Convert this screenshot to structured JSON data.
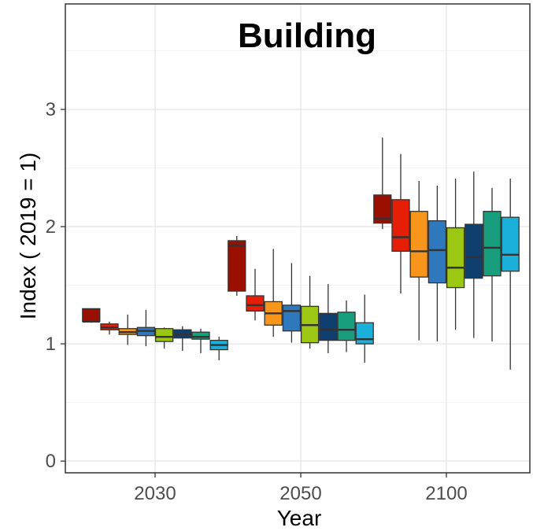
{
  "chart_data": {
    "type": "box",
    "title": "Building",
    "xlabel": "Year",
    "ylabel": "Index ( 2019 = 1)",
    "ylim": [
      -0.1,
      3.9
    ],
    "categories": [
      "2030",
      "2050",
      "2100"
    ],
    "yticks": [
      "0",
      "1",
      "2",
      "3"
    ],
    "grid": true,
    "legend": "none",
    "series": [
      {
        "color": "#9b0f00",
        "boxes": [
          {
            "min": 1.18,
            "q1": 1.19,
            "median": 1.19,
            "q3": 1.3,
            "max": 1.3
          },
          {
            "min": 1.41,
            "q1": 1.45,
            "median": 1.84,
            "q3": 1.88,
            "max": 1.92
          },
          {
            "min": 1.98,
            "q1": 2.03,
            "median": 2.07,
            "q3": 2.27,
            "max": 2.76
          }
        ]
      },
      {
        "color": "#e51e05",
        "boxes": [
          {
            "min": 1.08,
            "q1": 1.12,
            "median": 1.14,
            "q3": 1.17,
            "max": 1.19
          },
          {
            "min": 1.2,
            "q1": 1.28,
            "median": 1.33,
            "q3": 1.41,
            "max": 1.64
          },
          {
            "min": 1.43,
            "q1": 1.79,
            "median": 1.91,
            "q3": 2.23,
            "max": 2.62
          }
        ]
      },
      {
        "color": "#f8961c",
        "boxes": [
          {
            "min": 0.99,
            "q1": 1.08,
            "median": 1.1,
            "q3": 1.13,
            "max": 1.25
          },
          {
            "min": 1.06,
            "q1": 1.16,
            "median": 1.26,
            "q3": 1.36,
            "max": 1.81
          },
          {
            "min": 1.03,
            "q1": 1.57,
            "median": 1.79,
            "q3": 2.13,
            "max": 2.39
          }
        ]
      },
      {
        "color": "#2e78bd",
        "boxes": [
          {
            "min": 0.98,
            "q1": 1.07,
            "median": 1.11,
            "q3": 1.14,
            "max": 1.29
          },
          {
            "min": 1.01,
            "q1": 1.11,
            "median": 1.28,
            "q3": 1.33,
            "max": 1.69
          },
          {
            "min": 1.02,
            "q1": 1.52,
            "median": 1.8,
            "q3": 2.05,
            "max": 2.35
          }
        ]
      },
      {
        "color": "#9cc712",
        "boxes": [
          {
            "min": 0.96,
            "q1": 1.02,
            "median": 1.06,
            "q3": 1.13,
            "max": 1.14
          },
          {
            "min": 0.96,
            "q1": 1.01,
            "median": 1.16,
            "q3": 1.32,
            "max": 1.58
          },
          {
            "min": 1.12,
            "q1": 1.48,
            "median": 1.65,
            "q3": 1.99,
            "max": 2.41
          }
        ]
      },
      {
        "color": "#0e3f6e",
        "boxes": [
          {
            "min": 0.94,
            "q1": 1.05,
            "median": 1.08,
            "q3": 1.12,
            "max": 1.15
          },
          {
            "min": 0.92,
            "q1": 1.03,
            "median": 1.12,
            "q3": 1.26,
            "max": 1.51
          },
          {
            "min": 1.05,
            "q1": 1.56,
            "median": 1.74,
            "q3": 2.02,
            "max": 2.47
          }
        ]
      },
      {
        "color": "#189e7c",
        "boxes": [
          {
            "min": 0.92,
            "q1": 1.04,
            "median": 1.06,
            "q3": 1.1,
            "max": 1.13
          },
          {
            "min": 0.93,
            "q1": 1.03,
            "median": 1.12,
            "q3": 1.27,
            "max": 1.37
          },
          {
            "min": 1.02,
            "q1": 1.58,
            "median": 1.82,
            "q3": 2.13,
            "max": 2.33
          }
        ]
      },
      {
        "color": "#1bb0d9",
        "boxes": [
          {
            "min": 0.86,
            "q1": 0.95,
            "median": 0.99,
            "q3": 1.03,
            "max": 1.06
          },
          {
            "min": 0.84,
            "q1": 1.0,
            "median": 1.04,
            "q3": 1.18,
            "max": 1.42
          },
          {
            "min": 0.78,
            "q1": 1.62,
            "median": 1.76,
            "q3": 2.08,
            "max": 2.41
          }
        ]
      }
    ]
  }
}
